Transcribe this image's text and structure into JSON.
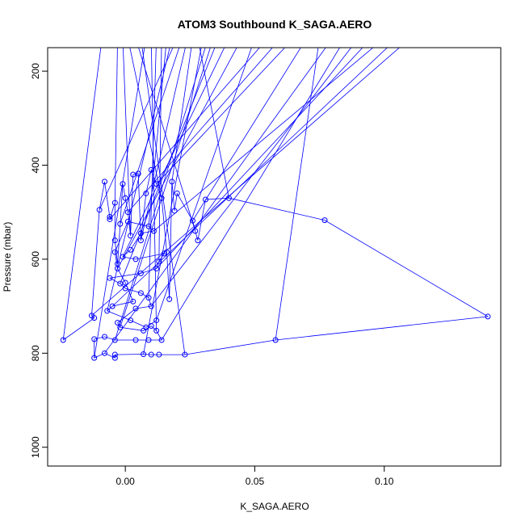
{
  "chart_data": {
    "type": "line",
    "title": "ATOM3 Southbound K_SAGA.AERO",
    "xlabel": "K_SAGA.AERO",
    "ylabel": "Pressure (mbar)",
    "xlim": [
      -0.03,
      0.145
    ],
    "ylim": [
      1040,
      150
    ],
    "y_reversed": true,
    "x_ticks": [
      0.0,
      0.05,
      0.1
    ],
    "x_tick_labels": [
      "0.00",
      "0.05",
      "0.10"
    ],
    "y_ticks": [
      200,
      400,
      600,
      800,
      1000
    ],
    "y_tick_labels": [
      "200",
      "400",
      "600",
      "800",
      "1000"
    ],
    "grid": false,
    "legend": "none",
    "color": "#0000ff",
    "series": [
      {
        "marker": "open-circle",
        "points": [
          {
            "x": -0.024,
            "y": 772
          },
          {
            "x": -0.012,
            "y": 725
          },
          {
            "x": -0.013,
            "y": 720
          },
          {
            "x": -0.01,
            "y": 495
          },
          {
            "x": -0.008,
            "y": 435
          },
          {
            "x": -0.006,
            "y": 510
          },
          {
            "x": -0.006,
            "y": 515
          },
          {
            "x": -0.004,
            "y": 480
          },
          {
            "x": -0.004,
            "y": 560
          },
          {
            "x": -0.003,
            "y": 610
          },
          {
            "x": -0.002,
            "y": 525
          },
          {
            "x": -0.001,
            "y": 440
          },
          {
            "x": 0.0,
            "y": 470
          },
          {
            "x": 0.001,
            "y": 500
          },
          {
            "x": 0.002,
            "y": 550
          },
          {
            "x": 0.003,
            "y": 420
          },
          {
            "x": 0.005,
            "y": 418
          },
          {
            "x": 0.006,
            "y": 560
          },
          {
            "x": 0.008,
            "y": 460
          },
          {
            "x": 0.01,
            "y": 410
          },
          {
            "x": 0.012,
            "y": 440
          },
          {
            "x": 0.014,
            "y": 470
          },
          {
            "x": 0.016,
            "y": 585
          },
          {
            "x": 0.017,
            "y": 685
          },
          {
            "x": 0.018,
            "y": 435
          },
          {
            "x": 0.019,
            "y": 497
          },
          {
            "x": 0.02,
            "y": 460
          },
          {
            "x": 0.026,
            "y": 518
          },
          {
            "x": 0.027,
            "y": 540
          },
          {
            "x": 0.028,
            "y": 560
          },
          {
            "x": 0.031,
            "y": 473
          },
          {
            "x": 0.04,
            "y": 470
          },
          {
            "x": 0.077,
            "y": 517
          },
          {
            "x": 0.14,
            "y": 722
          },
          {
            "x": 0.058,
            "y": 772
          },
          {
            "x": 0.023,
            "y": 803
          },
          {
            "x": 0.013,
            "y": 803
          },
          {
            "x": 0.01,
            "y": 803
          },
          {
            "x": 0.007,
            "y": 802
          },
          {
            "x": -0.004,
            "y": 803
          },
          {
            "x": -0.004,
            "y": 810
          },
          {
            "x": -0.008,
            "y": 800
          },
          {
            "x": -0.012,
            "y": 810
          },
          {
            "x": -0.012,
            "y": 770
          },
          {
            "x": -0.008,
            "y": 765
          },
          {
            "x": -0.004,
            "y": 772
          },
          {
            "x": 0.004,
            "y": 772
          },
          {
            "x": 0.009,
            "y": 772
          },
          {
            "x": 0.014,
            "y": 772
          },
          {
            "x": 0.012,
            "y": 752
          },
          {
            "x": 0.01,
            "y": 742
          },
          {
            "x": 0.007,
            "y": 752
          },
          {
            "x": -0.002,
            "y": 745
          },
          {
            "x": -0.003,
            "y": 735
          },
          {
            "x": 0.004,
            "y": 705
          },
          {
            "x": 0.01,
            "y": 700
          },
          {
            "x": 0.009,
            "y": 682
          },
          {
            "x": 0.006,
            "y": 672
          },
          {
            "x": 0.0,
            "y": 662
          },
          {
            "x": -0.002,
            "y": 652
          },
          {
            "x": -0.006,
            "y": 640
          },
          {
            "x": 0.006,
            "y": 630
          },
          {
            "x": 0.012,
            "y": 620
          },
          {
            "x": 0.013,
            "y": 605
          },
          {
            "x": 0.015,
            "y": 588
          },
          {
            "x": 0.004,
            "y": 600
          },
          {
            "x": -0.001,
            "y": 595
          },
          {
            "x": 0.002,
            "y": 580
          },
          {
            "x": 0.006,
            "y": 545
          },
          {
            "x": 0.011,
            "y": 540
          },
          {
            "x": 0.009,
            "y": 530
          },
          {
            "x": 0.001,
            "y": 520
          },
          {
            "x": -0.004,
            "y": 585
          },
          {
            "x": -0.003,
            "y": 620
          },
          {
            "x": 0.0,
            "y": 650
          },
          {
            "x": 0.003,
            "y": 690
          },
          {
            "x": -0.005,
            "y": 700
          },
          {
            "x": -0.007,
            "y": 710
          },
          {
            "x": 0.002,
            "y": 730
          },
          {
            "x": 0.008,
            "y": 745
          },
          {
            "x": 0.012,
            "y": 730
          }
        ]
      }
    ],
    "top_destinations_x": [
      -0.009,
      -0.003,
      -0.001,
      0.001,
      0.004,
      0.006,
      0.008,
      0.01,
      0.012,
      0.014,
      0.016,
      0.018,
      0.02,
      0.022,
      0.024,
      0.026,
      0.028,
      0.03,
      0.032,
      0.034,
      0.036,
      0.04,
      0.045,
      0.05,
      0.055,
      0.06,
      0.065,
      0.07,
      0.075,
      0.08,
      0.085,
      0.09,
      0.095,
      0.1,
      0.105,
      0.11
    ]
  }
}
